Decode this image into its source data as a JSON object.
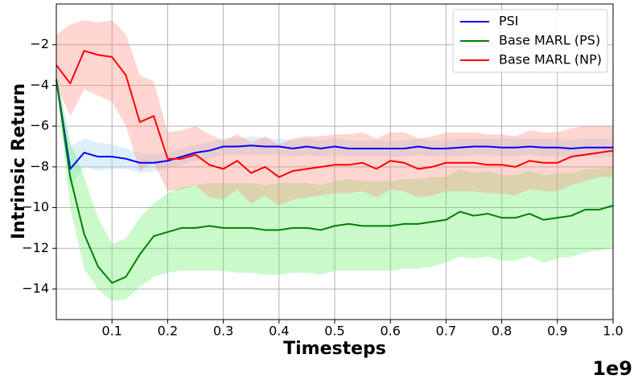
{
  "chart_data": {
    "type": "line",
    "xlabel": "Timesteps",
    "ylabel": "Intrinsic Return",
    "x_offset_label": "1e9",
    "x": [
      0,
      0.025,
      0.05,
      0.075,
      0.1,
      0.125,
      0.15,
      0.175,
      0.2,
      0.225,
      0.25,
      0.275,
      0.3,
      0.325,
      0.35,
      0.375,
      0.4,
      0.425,
      0.45,
      0.475,
      0.5,
      0.525,
      0.55,
      0.575,
      0.6,
      0.625,
      0.65,
      0.675,
      0.7,
      0.725,
      0.75,
      0.775,
      0.8,
      0.825,
      0.85,
      0.875,
      0.9,
      0.925,
      0.95,
      0.975,
      1.0
    ],
    "series": [
      {
        "name": "PSI",
        "color": "#0000ff",
        "band_color": "#9fd4f0",
        "values": [
          -3.7,
          -8.1,
          -7.3,
          -7.5,
          -7.5,
          -7.6,
          -7.8,
          -7.8,
          -7.7,
          -7.5,
          -7.3,
          -7.2,
          -7.0,
          -7.0,
          -6.95,
          -7.0,
          -7.0,
          -7.1,
          -7.0,
          -7.1,
          -7.0,
          -7.1,
          -7.1,
          -7.1,
          -7.1,
          -7.1,
          -7.0,
          -7.1,
          -7.1,
          -7.05,
          -7.0,
          -7.0,
          -7.05,
          -7.05,
          -7.0,
          -7.05,
          -7.05,
          -7.1,
          -7.05,
          -7.05,
          -7.05
        ],
        "upper": [
          -3.5,
          -7.0,
          -6.6,
          -6.8,
          -6.9,
          -7.1,
          -7.3,
          -7.4,
          -7.3,
          -7.1,
          -6.9,
          -6.8,
          -6.6,
          -6.6,
          -6.5,
          -6.6,
          -6.6,
          -6.7,
          -6.6,
          -6.7,
          -6.6,
          -6.7,
          -6.7,
          -6.7,
          -6.7,
          -6.7,
          -6.6,
          -6.7,
          -6.7,
          -6.6,
          -6.6,
          -6.6,
          -6.6,
          -6.6,
          -6.6,
          -6.6,
          -6.6,
          -6.7,
          -6.6,
          -6.6,
          -6.6
        ],
        "lower": [
          -3.9,
          -9.0,
          -8.0,
          -8.2,
          -8.1,
          -8.1,
          -8.3,
          -8.2,
          -8.1,
          -7.9,
          -7.7,
          -7.6,
          -7.4,
          -7.4,
          -7.4,
          -7.4,
          -7.4,
          -7.5,
          -7.4,
          -7.5,
          -7.4,
          -7.5,
          -7.5,
          -7.5,
          -7.5,
          -7.5,
          -7.4,
          -7.5,
          -7.5,
          -7.5,
          -7.4,
          -7.4,
          -7.5,
          -7.5,
          -7.4,
          -7.5,
          -7.5,
          -7.5,
          -7.5,
          -7.5,
          -7.5
        ]
      },
      {
        "name": "Base MARL (PS)",
        "color": "#008000",
        "band_color": "#66ee66",
        "values": [
          -3.7,
          -8.5,
          -11.3,
          -12.9,
          -13.7,
          -13.4,
          -12.3,
          -11.4,
          -11.2,
          -11.0,
          -11.0,
          -10.9,
          -11.0,
          -11.0,
          -11.0,
          -11.1,
          -11.1,
          -11.0,
          -11.0,
          -11.1,
          -10.9,
          -10.8,
          -10.9,
          -10.9,
          -10.9,
          -10.8,
          -10.8,
          -10.7,
          -10.6,
          -10.2,
          -10.4,
          -10.3,
          -10.5,
          -10.5,
          -10.3,
          -10.6,
          -10.5,
          -10.4,
          -10.1,
          -10.1,
          -9.9
        ],
        "upper": [
          -3.5,
          -6.8,
          -8.5,
          -10.5,
          -11.8,
          -11.5,
          -10.5,
          -9.8,
          -9.3,
          -9.0,
          -8.9,
          -8.8,
          -8.8,
          -8.8,
          -8.8,
          -8.9,
          -8.8,
          -8.8,
          -8.8,
          -8.9,
          -8.7,
          -8.6,
          -8.7,
          -8.7,
          -8.7,
          -8.6,
          -8.6,
          -8.5,
          -8.5,
          -8.1,
          -8.3,
          -8.2,
          -8.4,
          -8.4,
          -8.2,
          -8.4,
          -8.3,
          -8.3,
          -8.1,
          -8.1,
          -8.0
        ],
        "lower": [
          -3.9,
          -10.0,
          -13.0,
          -14.0,
          -14.6,
          -14.5,
          -13.9,
          -13.4,
          -13.2,
          -13.1,
          -13.1,
          -13.1,
          -13.1,
          -13.2,
          -13.2,
          -13.3,
          -13.3,
          -13.2,
          -13.2,
          -13.3,
          -13.1,
          -13.1,
          -13.1,
          -13.1,
          -13.1,
          -13.0,
          -13.0,
          -12.9,
          -12.7,
          -12.4,
          -12.5,
          -12.4,
          -12.6,
          -12.6,
          -12.4,
          -12.7,
          -12.5,
          -12.4,
          -12.2,
          -12.1,
          -12.0
        ]
      },
      {
        "name": "Base MARL (NP)",
        "color": "#ff0000",
        "band_color": "#ff8a7a",
        "values": [
          -3.0,
          -3.9,
          -2.3,
          -2.5,
          -2.6,
          -3.5,
          -5.8,
          -5.5,
          -7.6,
          -7.6,
          -7.4,
          -7.9,
          -8.1,
          -7.7,
          -8.3,
          -8.0,
          -8.5,
          -8.2,
          -8.1,
          -8.0,
          -7.9,
          -7.9,
          -7.8,
          -8.1,
          -7.7,
          -7.8,
          -8.1,
          -8.0,
          -7.8,
          -7.8,
          -7.8,
          -7.9,
          -7.9,
          -8.0,
          -7.7,
          -7.8,
          -7.8,
          -7.5,
          -7.4,
          -7.3,
          -7.2
        ],
        "upper": [
          -1.5,
          -1.0,
          -0.8,
          -0.9,
          -0.8,
          -1.5,
          -3.5,
          -3.8,
          -6.3,
          -6.2,
          -6.0,
          -6.4,
          -6.7,
          -6.4,
          -6.8,
          -6.5,
          -6.9,
          -6.6,
          -6.5,
          -6.5,
          -6.4,
          -6.4,
          -6.3,
          -6.6,
          -6.3,
          -6.3,
          -6.6,
          -6.5,
          -6.3,
          -6.3,
          -6.3,
          -6.4,
          -6.4,
          -6.5,
          -6.2,
          -6.3,
          -6.3,
          -6.1,
          -6.0,
          -6.0,
          -6.0
        ],
        "lower": [
          -4.0,
          -5.5,
          -4.2,
          -4.5,
          -4.8,
          -6.0,
          -8.2,
          -7.8,
          -9.2,
          -9.1,
          -8.9,
          -9.5,
          -9.6,
          -9.1,
          -9.8,
          -9.4,
          -9.9,
          -9.6,
          -9.5,
          -9.4,
          -9.3,
          -9.3,
          -9.2,
          -9.5,
          -9.1,
          -9.2,
          -9.5,
          -9.4,
          -9.2,
          -9.2,
          -9.2,
          -9.3,
          -9.3,
          -9.4,
          -9.1,
          -9.2,
          -9.2,
          -8.9,
          -8.7,
          -8.5,
          -8.5
        ]
      }
    ],
    "xlim": [
      0,
      1.0
    ],
    "xticks": [
      0.1,
      0.2,
      0.3,
      0.4,
      0.5,
      0.6,
      0.7,
      0.8,
      0.9,
      {
        "value": 1,
        "label": "1.0"
      }
    ],
    "ylim": [
      -15.5,
      0
    ],
    "yticks": [
      {
        "value": -14,
        "label": "−14"
      },
      {
        "value": -12,
        "label": "−12"
      },
      {
        "value": -10,
        "label": "−10"
      },
      {
        "value": -8,
        "label": "−8"
      },
      {
        "value": -6,
        "label": "−6"
      },
      {
        "value": -4,
        "label": "−4"
      },
      {
        "value": -2,
        "label": "−2"
      }
    ],
    "grid": true,
    "legend": "upper right"
  }
}
